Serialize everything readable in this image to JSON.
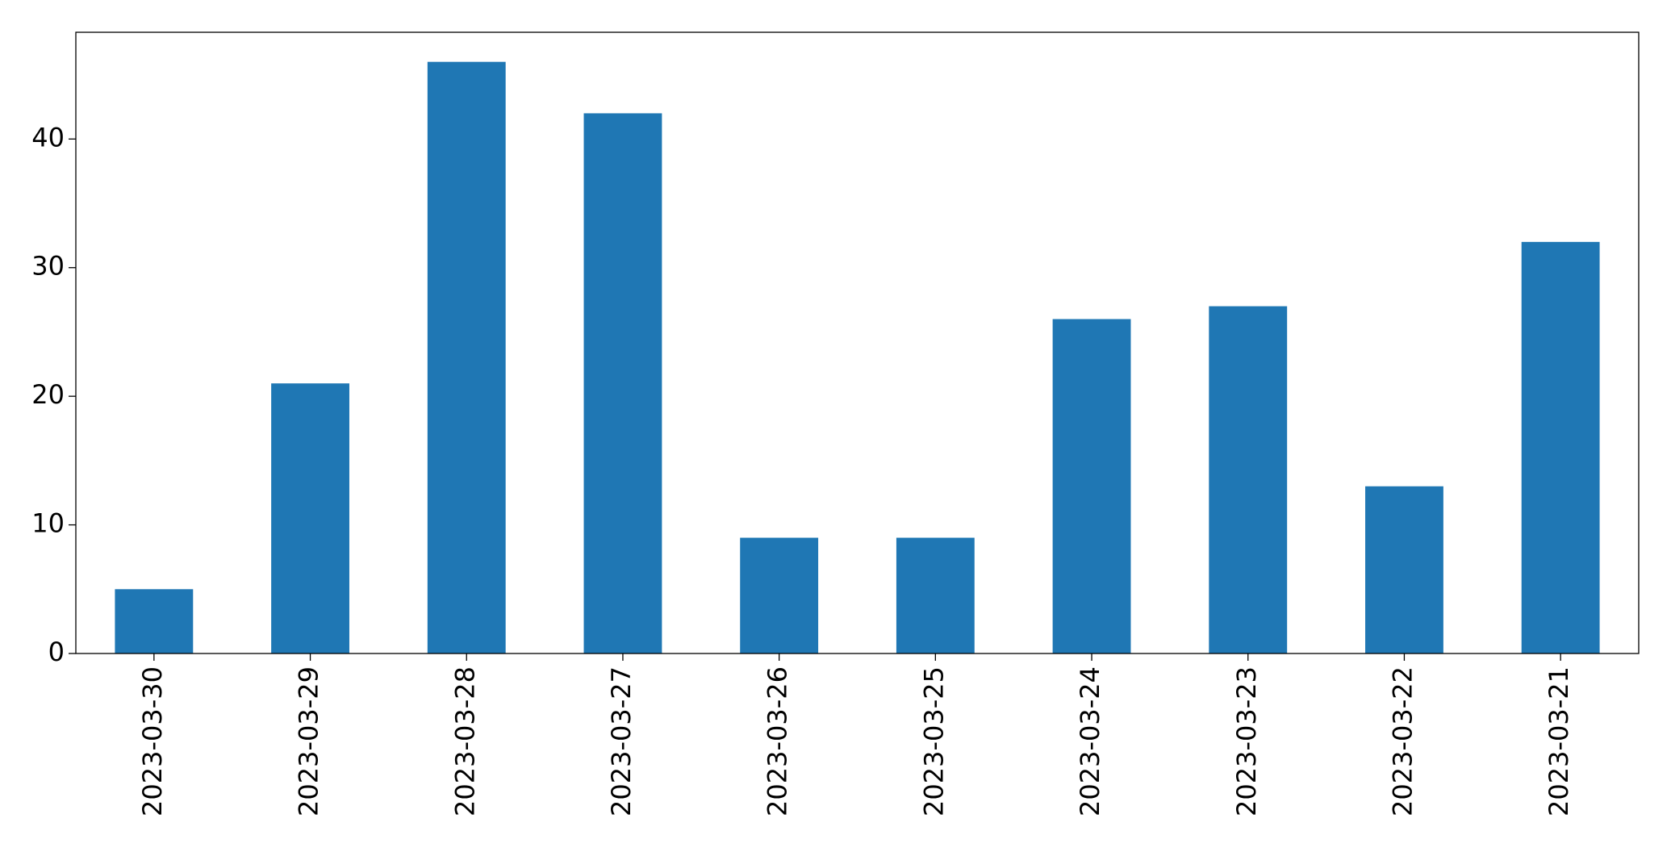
{
  "chart_data": {
    "type": "bar",
    "categories": [
      "2023-03-30",
      "2023-03-29",
      "2023-03-28",
      "2023-03-27",
      "2023-03-26",
      "2023-03-25",
      "2023-03-24",
      "2023-03-23",
      "2023-03-22",
      "2023-03-21"
    ],
    "values": [
      5,
      21,
      46,
      42,
      9,
      9,
      26,
      27,
      13,
      32
    ],
    "color": "#1f77b4",
    "ylim": [
      0,
      48.3
    ],
    "yticks": [
      0,
      10,
      20,
      30,
      40
    ],
    "grid": false
  }
}
